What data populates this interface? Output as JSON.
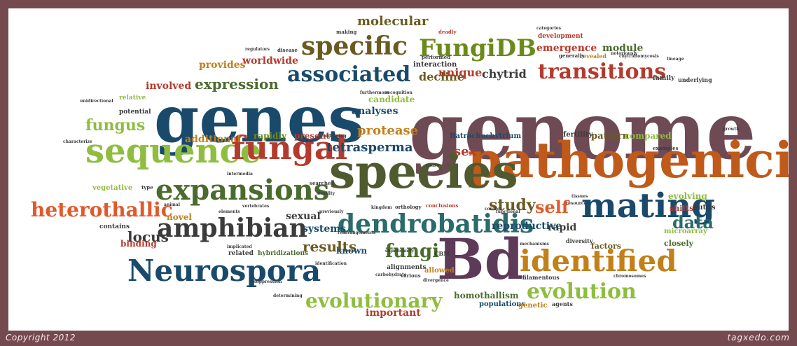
{
  "footer": {
    "copyright": "Copyright 2012",
    "brand": "tagxedo.com"
  },
  "words": [
    {
      "text": "genome",
      "color": "#6e4a55",
      "size": 112
    },
    {
      "text": "genes",
      "color": "#1a4a6b",
      "size": 92
    },
    {
      "text": "pathogenicity",
      "color": "#bf5a1a",
      "size": 70
    },
    {
      "text": "species",
      "color": "#4f5a2e",
      "size": 66
    },
    {
      "text": "Bd",
      "color": "#5d3a58",
      "size": 80
    },
    {
      "text": "Neurospora",
      "color": "#1a4a6b",
      "size": 42
    },
    {
      "text": "sequence",
      "color": "#8fbd40",
      "size": 48
    },
    {
      "text": "fungal",
      "color": "#b33b2e",
      "size": 46
    },
    {
      "text": "expansions",
      "color": "#4a6b2e",
      "size": 40
    },
    {
      "text": "mating",
      "color": "#1a4a6b",
      "size": 48
    },
    {
      "text": "identified",
      "color": "#c2801a",
      "size": 42
    },
    {
      "text": "dendrobatidis",
      "color": "#2a6b6b",
      "size": 36
    },
    {
      "text": "amphibian",
      "color": "#3b3b3b",
      "size": 36
    },
    {
      "text": "specific",
      "color": "#6b5a20",
      "size": 36
    },
    {
      "text": "FungiDB",
      "color": "#6b8a1a",
      "size": 34
    },
    {
      "text": "associated",
      "color": "#1a4a6b",
      "size": 30
    },
    {
      "text": "transitions",
      "color": "#b33b2e",
      "size": 30
    },
    {
      "text": "evolution",
      "color": "#8fbd40",
      "size": 30
    },
    {
      "text": "heterothallic",
      "color": "#e0592a",
      "size": 28
    },
    {
      "text": "evolutionary",
      "color": "#8fbd40",
      "size": 28
    },
    {
      "text": "fungi",
      "color": "#4a6b2e",
      "size": 26
    },
    {
      "text": "self",
      "color": "#e0592a",
      "size": 24
    },
    {
      "text": "data",
      "color": "#2a6b6b",
      "size": 24
    },
    {
      "text": "fungus",
      "color": "#8fbd40",
      "size": 22
    },
    {
      "text": "study",
      "color": "#6b5a20",
      "size": 22
    },
    {
      "text": "locus",
      "color": "#3b3b3b",
      "size": 20
    },
    {
      "text": "results",
      "color": "#6b5a20",
      "size": 20
    },
    {
      "text": "expression",
      "color": "#4a6b2e",
      "size": 20
    },
    {
      "text": "molecular",
      "color": "#6b5a20",
      "size": 18
    },
    {
      "text": "protease",
      "color": "#c2801a",
      "size": 18
    },
    {
      "text": "tetrasperma",
      "color": "#1a4a6b",
      "size": 18
    },
    {
      "text": "sex",
      "color": "#b33b2e",
      "size": 18
    },
    {
      "text": "decline",
      "color": "#6b5a20",
      "size": 16
    },
    {
      "text": "unique",
      "color": "#b33b2e",
      "size": 16
    },
    {
      "text": "chytrid",
      "color": "#3b3b3b",
      "size": 16
    },
    {
      "text": "emergence",
      "color": "#b33b2e",
      "size": 14
    },
    {
      "text": "module",
      "color": "#4a6b2e",
      "size": 14
    },
    {
      "text": "worldwide",
      "color": "#b33b2e",
      "size": 14
    },
    {
      "text": "provides",
      "color": "#c2801a",
      "size": 14
    },
    {
      "text": "involved",
      "color": "#b33b2e",
      "size": 14
    },
    {
      "text": "analyses",
      "color": "#1a4a6b",
      "size": 14
    },
    {
      "text": "candidate",
      "color": "#8fbd40",
      "size": 12
    },
    {
      "text": "additional",
      "color": "#c2801a",
      "size": 14
    },
    {
      "text": "rapidly",
      "color": "#6b8a1a",
      "size": 12
    },
    {
      "text": "present",
      "color": "#b33b2e",
      "size": 12
    },
    {
      "text": "reproductive",
      "color": "#1a4a6b",
      "size": 14
    },
    {
      "text": "rapid",
      "color": "#3b3b3b",
      "size": 14
    },
    {
      "text": "systems",
      "color": "#1a4a6b",
      "size": 14
    },
    {
      "text": "sexual",
      "color": "#3b3b3b",
      "size": 14
    },
    {
      "text": "novel",
      "color": "#c2801a",
      "size": 12
    },
    {
      "text": "binding",
      "color": "#b33b2e",
      "size": 12
    },
    {
      "text": "known",
      "color": "#1a4a6b",
      "size": 12
    },
    {
      "text": "pattern",
      "color": "#6b5a20",
      "size": 13
    },
    {
      "text": "compared",
      "color": "#8fbd40",
      "size": 12
    },
    {
      "text": "fertility",
      "color": "#3b3b3b",
      "size": 10
    },
    {
      "text": "evolving",
      "color": "#8fbd40",
      "size": 12
    },
    {
      "text": "shifts",
      "color": "#b33b2e",
      "size": 11
    },
    {
      "text": "eutils",
      "color": "#3b3b3b",
      "size": 10
    },
    {
      "text": "factors",
      "color": "#6b5a20",
      "size": 11
    },
    {
      "text": "closely",
      "color": "#4a6b2e",
      "size": 11
    },
    {
      "text": "microarray",
      "color": "#8fbd40",
      "size": 10
    },
    {
      "text": "diversity",
      "color": "#3b3b3b",
      "size": 8
    },
    {
      "text": "homothallism",
      "color": "#4a6b2e",
      "size": 12
    },
    {
      "text": "populations",
      "color": "#1a4a6b",
      "size": 10
    },
    {
      "text": "genetic",
      "color": "#c2801a",
      "size": 10
    },
    {
      "text": "agents",
      "color": "#3b3b3b",
      "size": 8
    },
    {
      "text": "important",
      "color": "#b33b2e",
      "size": 14
    },
    {
      "text": "allowed",
      "color": "#c2801a",
      "size": 10
    },
    {
      "text": "alignments",
      "color": "#3b3b3b",
      "size": 9
    },
    {
      "text": "hybridizations",
      "color": "#4a6b2e",
      "size": 9
    },
    {
      "text": "related",
      "color": "#3b3b3b",
      "size": 9
    },
    {
      "text": "vegetative",
      "color": "#8fbd40",
      "size": 10
    },
    {
      "text": "contains",
      "color": "#3b3b3b",
      "size": 9
    },
    {
      "text": "potential",
      "color": "#3b3b3b",
      "size": 9
    },
    {
      "text": "relative",
      "color": "#8fbd40",
      "size": 9
    },
    {
      "text": "Batrachochytrium",
      "color": "#1a4a6b",
      "size": 10
    },
    {
      "text": "interaction",
      "color": "#3b3b3b",
      "size": 10
    },
    {
      "text": "development",
      "color": "#b33b2e",
      "size": 9
    },
    {
      "text": "revealed",
      "color": "#c2801a",
      "size": 8
    },
    {
      "text": "family",
      "color": "#3b3b3b",
      "size": 9
    },
    {
      "text": "underlying",
      "color": "#3b3b3b",
      "size": 8
    },
    {
      "text": "filamentous",
      "color": "#3b3b3b",
      "size": 8
    },
    {
      "text": "CBM",
      "color": "#3b3b3b",
      "size": 8
    },
    {
      "text": "conclusions",
      "color": "#b33b2e",
      "size": 7
    },
    {
      "text": "orthology",
      "color": "#3b3b3b",
      "size": 7
    },
    {
      "text": "making",
      "color": "#3b3b3b",
      "size": 7
    },
    {
      "text": "deadly",
      "color": "#b33b2e",
      "size": 7
    },
    {
      "text": "disease",
      "color": "#3b3b3b",
      "size": 7
    },
    {
      "text": "performed",
      "color": "#3b3b3b",
      "size": 7
    },
    {
      "text": "generally",
      "color": "#3b3b3b",
      "size": 7
    },
    {
      "text": "examples",
      "color": "#3b3b3b",
      "size": 7
    },
    {
      "text": "searches",
      "color": "#3b3b3b",
      "size": 7
    },
    {
      "text": "type",
      "color": "#3b3b3b",
      "size": 7
    },
    {
      "text": "various",
      "color": "#3b3b3b",
      "size": 7
    },
    {
      "text": "carbohydrate",
      "color": "#3b3b3b",
      "size": 6
    },
    {
      "text": "mechanisms",
      "color": "#3b3b3b",
      "size": 6
    },
    {
      "text": "functional",
      "color": "#3b3b3b",
      "size": 6
    },
    {
      "text": "control",
      "color": "#3b3b3b",
      "size": 6
    },
    {
      "text": "cause",
      "color": "#3b3b3b",
      "size": 6
    },
    {
      "text": "identification",
      "color": "#3b3b3b",
      "size": 6
    },
    {
      "text": "significantly",
      "color": "#3b3b3b",
      "size": 6
    },
    {
      "text": "animal",
      "color": "#3b3b3b",
      "size": 6
    },
    {
      "text": "elements",
      "color": "#3b3b3b",
      "size": 6
    },
    {
      "text": "recognition",
      "color": "#3b3b3b",
      "size": 6
    },
    {
      "text": "furthermore",
      "color": "#3b3b3b",
      "size": 6
    },
    {
      "text": "confirming",
      "color": "#3b3b3b",
      "size": 6
    },
    {
      "text": "tissues",
      "color": "#3b3b3b",
      "size": 6
    },
    {
      "text": "resource",
      "color": "#3b3b3b",
      "size": 6
    },
    {
      "text": "lineage",
      "color": "#3b3b3b",
      "size": 6
    },
    {
      "text": "growth",
      "color": "#3b3b3b",
      "size": 6
    },
    {
      "text": "chromosomes",
      "color": "#3b3b3b",
      "size": 6
    },
    {
      "text": "divergence",
      "color": "#3b3b3b",
      "size": 6
    },
    {
      "text": "suppression",
      "color": "#3b3b3b",
      "size": 6
    },
    {
      "text": "determining",
      "color": "#3b3b3b",
      "size": 6
    },
    {
      "text": "notoriously",
      "color": "#3b3b3b",
      "size": 6
    },
    {
      "text": "chytridiomycosis",
      "color": "#3b3b3b",
      "size": 6
    },
    {
      "text": "categories",
      "color": "#3b3b3b",
      "size": 6
    },
    {
      "text": "regulators",
      "color": "#3b3b3b",
      "size": 6
    },
    {
      "text": "characterize",
      "color": "#3b3b3b",
      "size": 6
    },
    {
      "text": "unidirectional",
      "color": "#3b3b3b",
      "size": 6
    },
    {
      "text": "intermedia",
      "color": "#3b3b3b",
      "size": 6
    },
    {
      "text": "vertebrates",
      "color": "#3b3b3b",
      "size": 6
    },
    {
      "text": "previously",
      "color": "#3b3b3b",
      "size": 6
    },
    {
      "text": "kingdom",
      "color": "#3b3b3b",
      "size": 6
    },
    {
      "text": "rearrangements",
      "color": "#3b3b3b",
      "size": 6
    },
    {
      "text": "sterility",
      "color": "#3b3b3b",
      "size": 6
    },
    {
      "text": "implicated",
      "color": "#3b3b3b",
      "size": 6
    }
  ]
}
